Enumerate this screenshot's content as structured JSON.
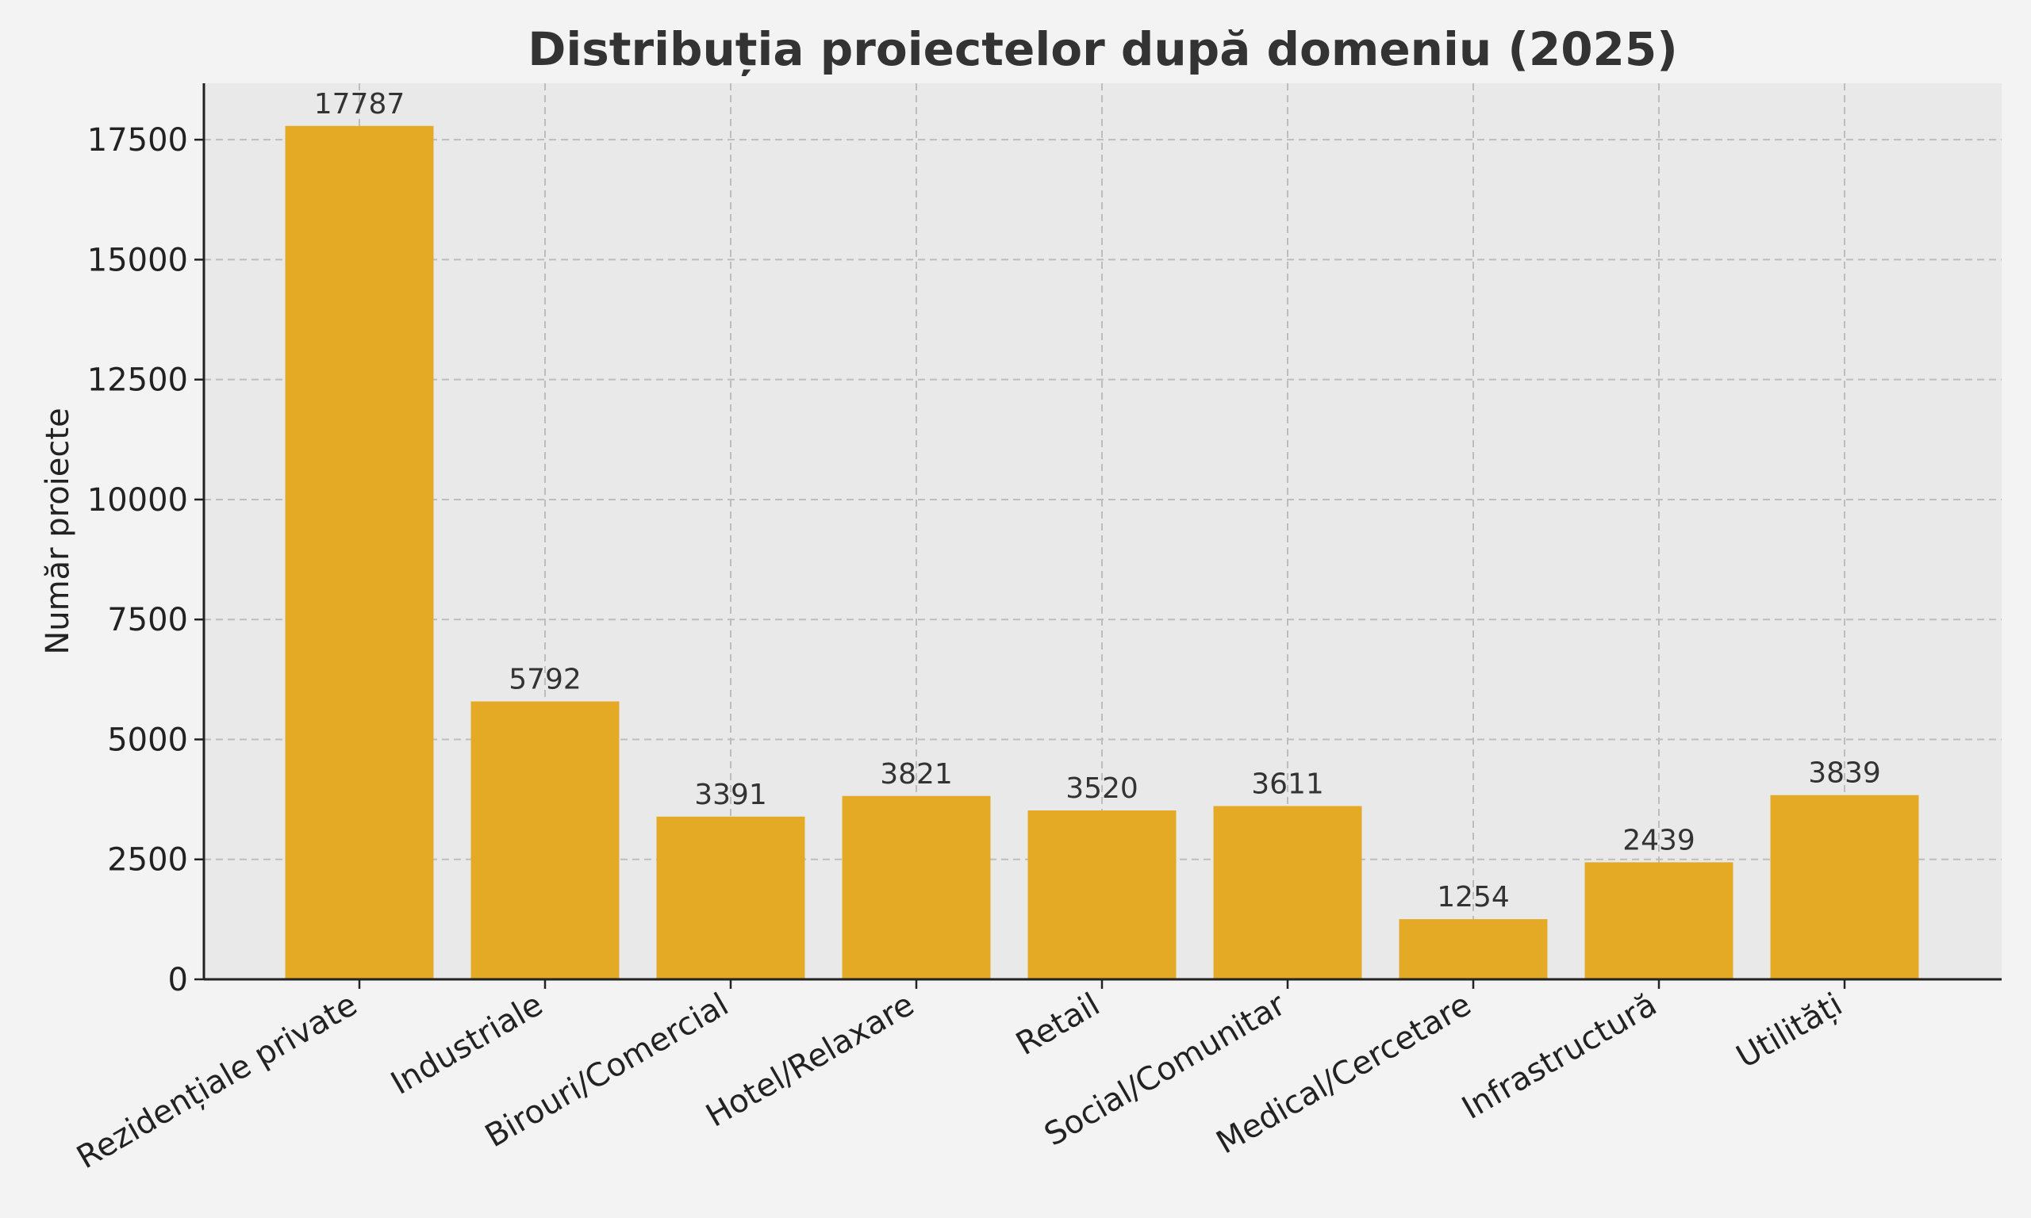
{
  "colors": {
    "bar": "#E5AA25",
    "plot_background": "#E9E9E9",
    "figure_background": "#F3F3F3"
  },
  "chart_data": {
    "type": "bar",
    "title": "Distribuția proiectelor după domeniu (2025)",
    "xlabel": "",
    "ylabel": "Număr proiecte",
    "categories": [
      "Rezidențiale private",
      "Industriale",
      "Birouri/Comercial",
      "Hotel/Relaxare",
      "Retail",
      "Social/Comunitar",
      "Medical/Cercetare",
      "Infrastructură",
      "Utilități"
    ],
    "values": [
      17787,
      5792,
      3391,
      3821,
      3520,
      3611,
      1254,
      2439,
      3839
    ],
    "ylim": [
      0,
      18676
    ],
    "yticks": [
      0,
      2500,
      5000,
      7500,
      10000,
      12500,
      15000,
      17500
    ],
    "grid": true,
    "data_labels": true
  }
}
